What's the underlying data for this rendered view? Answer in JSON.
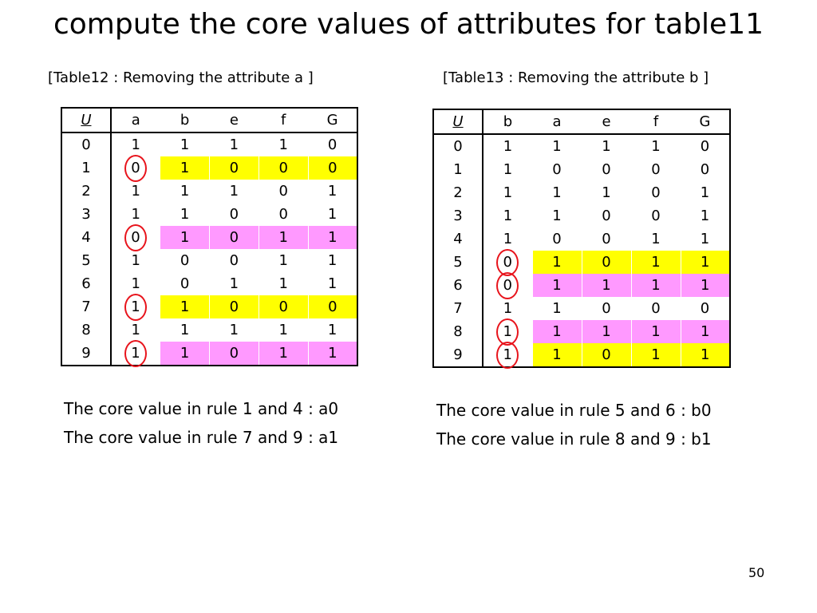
{
  "title": "compute the core values of attributes for table11",
  "tables": [
    {
      "caption": "[Table12 : Removing the attribute a ]",
      "headers": [
        "U",
        "a",
        "b",
        "e",
        "f",
        "G"
      ],
      "rows": [
        {
          "cells": [
            "0",
            "1",
            "1",
            "1",
            "1",
            "0"
          ],
          "highlight": "",
          "circled": false
        },
        {
          "cells": [
            "1",
            "0",
            "1",
            "0",
            "0",
            "0"
          ],
          "highlight": "yellow",
          "circled": true
        },
        {
          "cells": [
            "2",
            "1",
            "1",
            "1",
            "0",
            "1"
          ],
          "highlight": "",
          "circled": false
        },
        {
          "cells": [
            "3",
            "1",
            "1",
            "0",
            "0",
            "1"
          ],
          "highlight": "",
          "circled": false
        },
        {
          "cells": [
            "4",
            "0",
            "1",
            "0",
            "1",
            "1"
          ],
          "highlight": "pink",
          "circled": true
        },
        {
          "cells": [
            "5",
            "1",
            "0",
            "0",
            "1",
            "1"
          ],
          "highlight": "",
          "circled": false
        },
        {
          "cells": [
            "6",
            "1",
            "0",
            "1",
            "1",
            "1"
          ],
          "highlight": "",
          "circled": false
        },
        {
          "cells": [
            "7",
            "1",
            "1",
            "0",
            "0",
            "0"
          ],
          "highlight": "yellow",
          "circled": true
        },
        {
          "cells": [
            "8",
            "1",
            "1",
            "1",
            "1",
            "1"
          ],
          "highlight": "",
          "circled": false
        },
        {
          "cells": [
            "9",
            "1",
            "1",
            "0",
            "1",
            "1"
          ],
          "highlight": "pink",
          "circled": true
        }
      ],
      "notes": [
        "The core value in rule 1 and 4 : a0",
        "The core value in rule 7 and 9 : a1"
      ]
    },
    {
      "caption": "[Table13 : Removing the attribute b ]",
      "headers": [
        "U",
        "b",
        "a",
        "e",
        "f",
        "G"
      ],
      "rows": [
        {
          "cells": [
            "0",
            "1",
            "1",
            "1",
            "1",
            "0"
          ],
          "highlight": "",
          "circled": false
        },
        {
          "cells": [
            "1",
            "1",
            "0",
            "0",
            "0",
            "0"
          ],
          "highlight": "",
          "circled": false
        },
        {
          "cells": [
            "2",
            "1",
            "1",
            "1",
            "0",
            "1"
          ],
          "highlight": "",
          "circled": false
        },
        {
          "cells": [
            "3",
            "1",
            "1",
            "0",
            "0",
            "1"
          ],
          "highlight": "",
          "circled": false
        },
        {
          "cells": [
            "4",
            "1",
            "0",
            "0",
            "1",
            "1"
          ],
          "highlight": "",
          "circled": false
        },
        {
          "cells": [
            "5",
            "0",
            "1",
            "0",
            "1",
            "1"
          ],
          "highlight": "yellow",
          "circled": true
        },
        {
          "cells": [
            "6",
            "0",
            "1",
            "1",
            "1",
            "1"
          ],
          "highlight": "pink",
          "circled": true
        },
        {
          "cells": [
            "7",
            "1",
            "1",
            "0",
            "0",
            "0"
          ],
          "highlight": "",
          "circled": false
        },
        {
          "cells": [
            "8",
            "1",
            "1",
            "1",
            "1",
            "1"
          ],
          "highlight": "pink",
          "circled": true
        },
        {
          "cells": [
            "9",
            "1",
            "1",
            "0",
            "1",
            "1"
          ],
          "highlight": "yellow",
          "circled": true
        }
      ],
      "notes": [
        "The core value in rule 5 and 6 : b0",
        "The core value in rule 8 and 9 : b1"
      ]
    }
  ],
  "colors": {
    "yellow": "#ffff00",
    "pink": "#ff99ff",
    "circle": "#e8141c"
  },
  "page_number": "50"
}
